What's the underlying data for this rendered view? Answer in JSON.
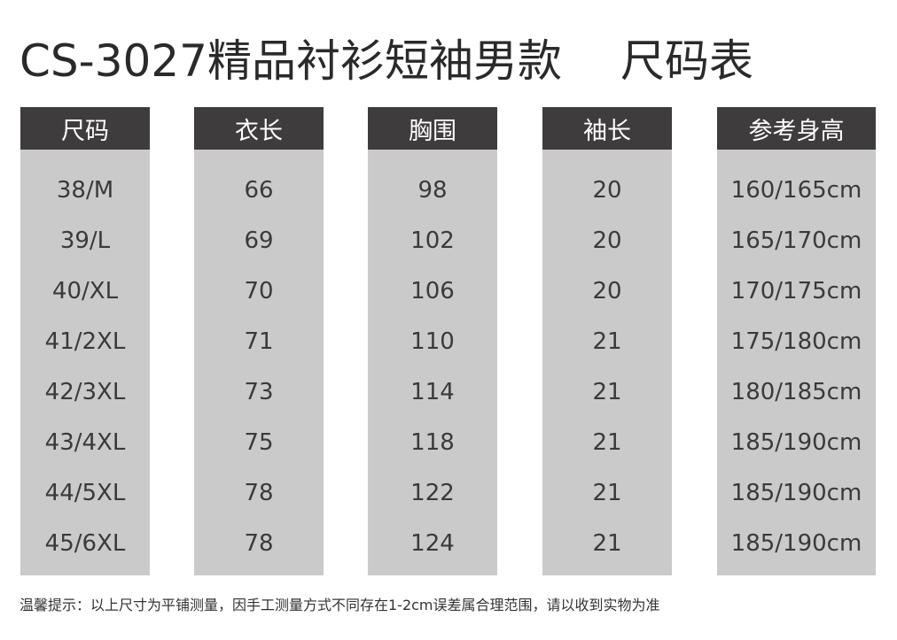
{
  "title": {
    "product": "CS-3027精品衬衫短袖男款",
    "chart": "尺码表"
  },
  "table": {
    "columns": [
      {
        "header": "尺码",
        "values": [
          "38/M",
          "39/L",
          "40/XL",
          "41/2XL",
          "42/3XL",
          "43/4XL",
          "44/5XL",
          "45/6XL"
        ]
      },
      {
        "header": "衣长",
        "values": [
          "66",
          "69",
          "70",
          "71",
          "73",
          "75",
          "78",
          "78"
        ]
      },
      {
        "header": "胸围",
        "values": [
          "98",
          "102",
          "106",
          "110",
          "114",
          "118",
          "122",
          "124"
        ]
      },
      {
        "header": "袖长",
        "values": [
          "20",
          "20",
          "20",
          "21",
          "21",
          "21",
          "21",
          "21"
        ]
      },
      {
        "header": "参考身高",
        "values": [
          "160/165cm",
          "165/170cm",
          "170/175cm",
          "175/180cm",
          "180/185cm",
          "185/190cm",
          "185/190cm",
          "185/190cm"
        ]
      }
    ]
  },
  "note": "温馨提示：以上尺寸为平铺测量，因手工测量方式不同存在1-2cm误差属合理范围，请以收到实物为准",
  "colors": {
    "header_bg": "#3f3c3d",
    "column_bg": "#cbcacb",
    "text": "#333333"
  }
}
